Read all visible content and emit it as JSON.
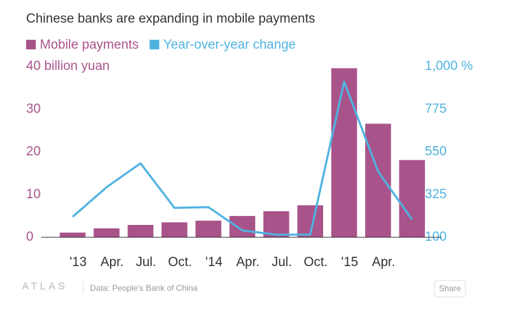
{
  "chart_data": {
    "type": "bar_line",
    "title": "Chinese banks are expanding in mobile payments",
    "source": "Data: People's Bank of China",
    "brand": "ATLAS",
    "button": "Share",
    "categories": [
      "'13",
      "Apr.",
      "Jul.",
      "Oct.",
      "'14",
      "Apr.",
      "Jul.",
      "Oct.",
      "'15",
      "Apr.",
      null
    ],
    "series": [
      {
        "name": "Mobile payments",
        "color": "#a8538a",
        "type": "bar",
        "values": [
          1.1,
          2.1,
          2.9,
          3.5,
          3.9,
          5.0,
          6.1,
          7.5,
          39.6,
          26.6,
          18.1
        ]
      },
      {
        "name": "Year-over-year change",
        "color": "#4fb3e0",
        "type": "line",
        "axis": "y2",
        "values": [
          208,
          364,
          490,
          255,
          259,
          136,
          114,
          114,
          920,
          447,
          194
        ]
      }
    ],
    "ylim": [
      0,
      40
    ],
    "yticks": [
      0,
      10,
      20,
      30,
      {
        "value": 40,
        "label": "40 billion yuan"
      }
    ],
    "y2lim": [
      100,
      1000
    ],
    "y2ticks": [
      100,
      325,
      550,
      775,
      {
        "value": 1000,
        "label": "1,000 %"
      }
    ],
    "grid": false
  }
}
